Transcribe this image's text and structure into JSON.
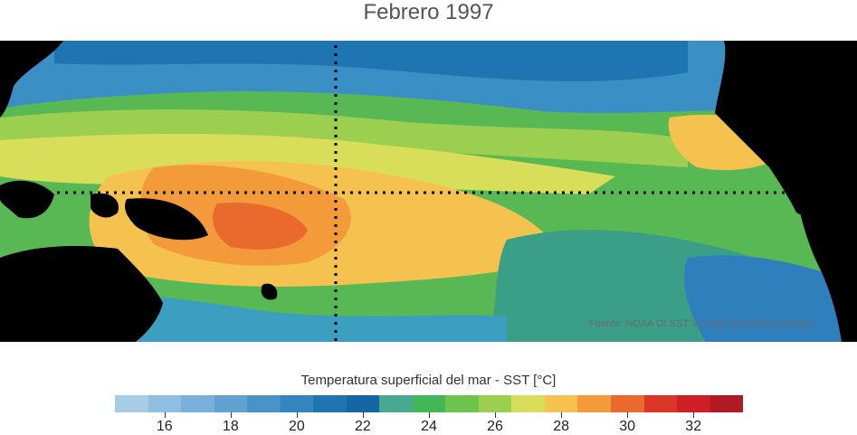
{
  "title": "Febrero 1997",
  "source": "Fuente: NOAA OI SST V2 High Resolution Dataset",
  "colorbar": {
    "label": "Temperatura superficial del mar - SST  [°C]",
    "min": 15,
    "max": 33,
    "step": 1,
    "colors": [
      "#a6cce6",
      "#8ebfe0",
      "#78b0d9",
      "#61a2d1",
      "#4a93c8",
      "#3384bf",
      "#1f74b2",
      "#1467a3",
      "#4aa890",
      "#41b757",
      "#6cc44f",
      "#9ccf4f",
      "#d8de5a",
      "#f6c24f",
      "#f39b3a",
      "#ea6a2d",
      "#db3526",
      "#cc1f26",
      "#b01a22"
    ],
    "ticks": [
      "16",
      "18",
      "20",
      "22",
      "24",
      "26",
      "28",
      "30",
      "32"
    ],
    "tick_values": [
      16,
      18,
      20,
      22,
      24,
      26,
      28,
      30,
      32
    ]
  },
  "map": {
    "land_color": "#000000",
    "reference_lines": [
      "ecuador",
      "meridiano 180°"
    ]
  }
}
